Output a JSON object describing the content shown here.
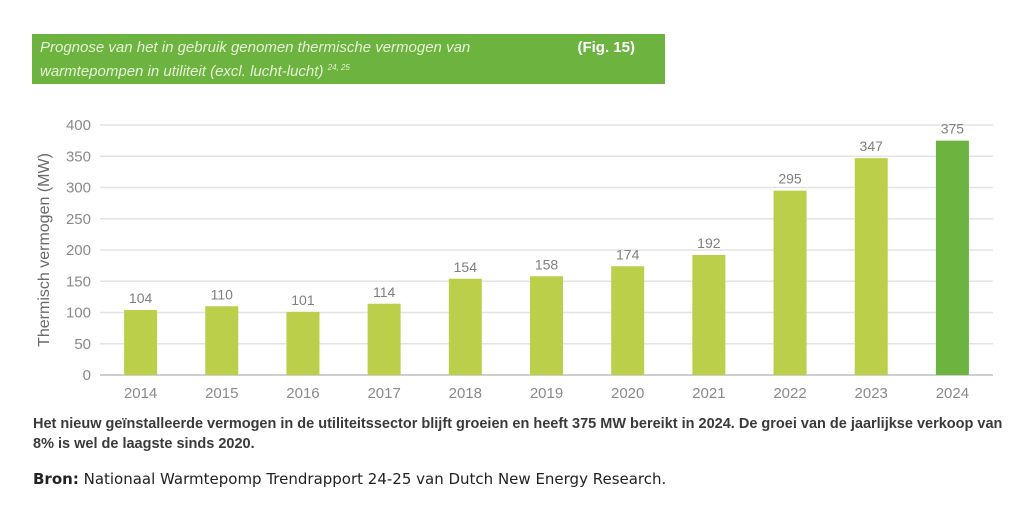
{
  "header": {
    "title_line1": "Prognose van het in gebruik genomen thermische vermogen van",
    "title_line2": "warmtepompen in utiliteit (excl. lucht-lucht)",
    "superscript": "24, 25",
    "fig_label": "(Fig. 15)",
    "background_color": "#6cb33f"
  },
  "chart_data": {
    "type": "bar",
    "title": "Prognose van het in gebruik genomen thermische vermogen van warmtepompen in utiliteit (excl. lucht-lucht)",
    "xlabel": "",
    "ylabel": "Thermisch vermogen (MW)",
    "categories": [
      "2014",
      "2015",
      "2016",
      "2017",
      "2018",
      "2019",
      "2020",
      "2021",
      "2022",
      "2023",
      "2024"
    ],
    "values": [
      104,
      110,
      101,
      114,
      154,
      158,
      174,
      192,
      295,
      347,
      375
    ],
    "data_labels": [
      "104",
      "110",
      "101",
      "114",
      "154",
      "158",
      "174",
      "192",
      "295",
      "347",
      "375"
    ],
    "ylim": [
      0,
      400
    ],
    "yticks": [
      0,
      50,
      100,
      150,
      200,
      250,
      300,
      350,
      400
    ],
    "grid": true,
    "legend": "none",
    "bar_color": "#bccf4a",
    "highlight_color": "#6cb33f",
    "highlight_index": 10
  },
  "caption": "Het nieuw geïnstalleerde vermogen in de utiliteitssector blijft groeien en heeft 375 MW bereikt in 2024. De groei van de jaarlijkse verkoop van 8% is wel de laagste sinds 2020.",
  "source": {
    "label": "Bron:",
    "text": " Nationaal Warmtepomp Trendrapport 24-25 van Dutch New Energy Research."
  }
}
